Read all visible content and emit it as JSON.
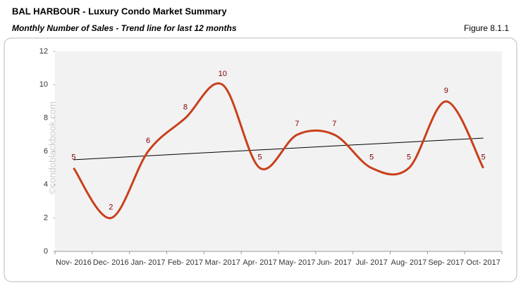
{
  "chart_data": {
    "type": "line",
    "title": "BAL HARBOUR - Luxury Condo Market Summary",
    "subtitle": "Monthly Number of Sales - Trend line for last 12 months",
    "figure": "Figure 8.1.1",
    "watermark": "©condoblackbook.com",
    "categories": [
      "Nov- 2016",
      "Dec- 2016",
      "Jan- 2017",
      "Feb- 2017",
      "Mar- 2017",
      "Apr- 2017",
      "May- 2017",
      "Jun- 2017",
      "Jul- 2017",
      "Aug- 2017",
      "Sep- 2017",
      "Oct- 2017"
    ],
    "values": [
      5,
      2,
      6,
      8,
      10,
      5,
      7,
      7,
      5,
      5,
      9,
      5
    ],
    "color": "#c8401c",
    "label_color": "#7f0000",
    "trendline": {
      "start": 5.5,
      "end": 6.8,
      "color": "#000000"
    },
    "ylim": [
      0,
      12
    ],
    "yticks": [
      0,
      2,
      4,
      6,
      8,
      10,
      12
    ],
    "grid": false
  }
}
